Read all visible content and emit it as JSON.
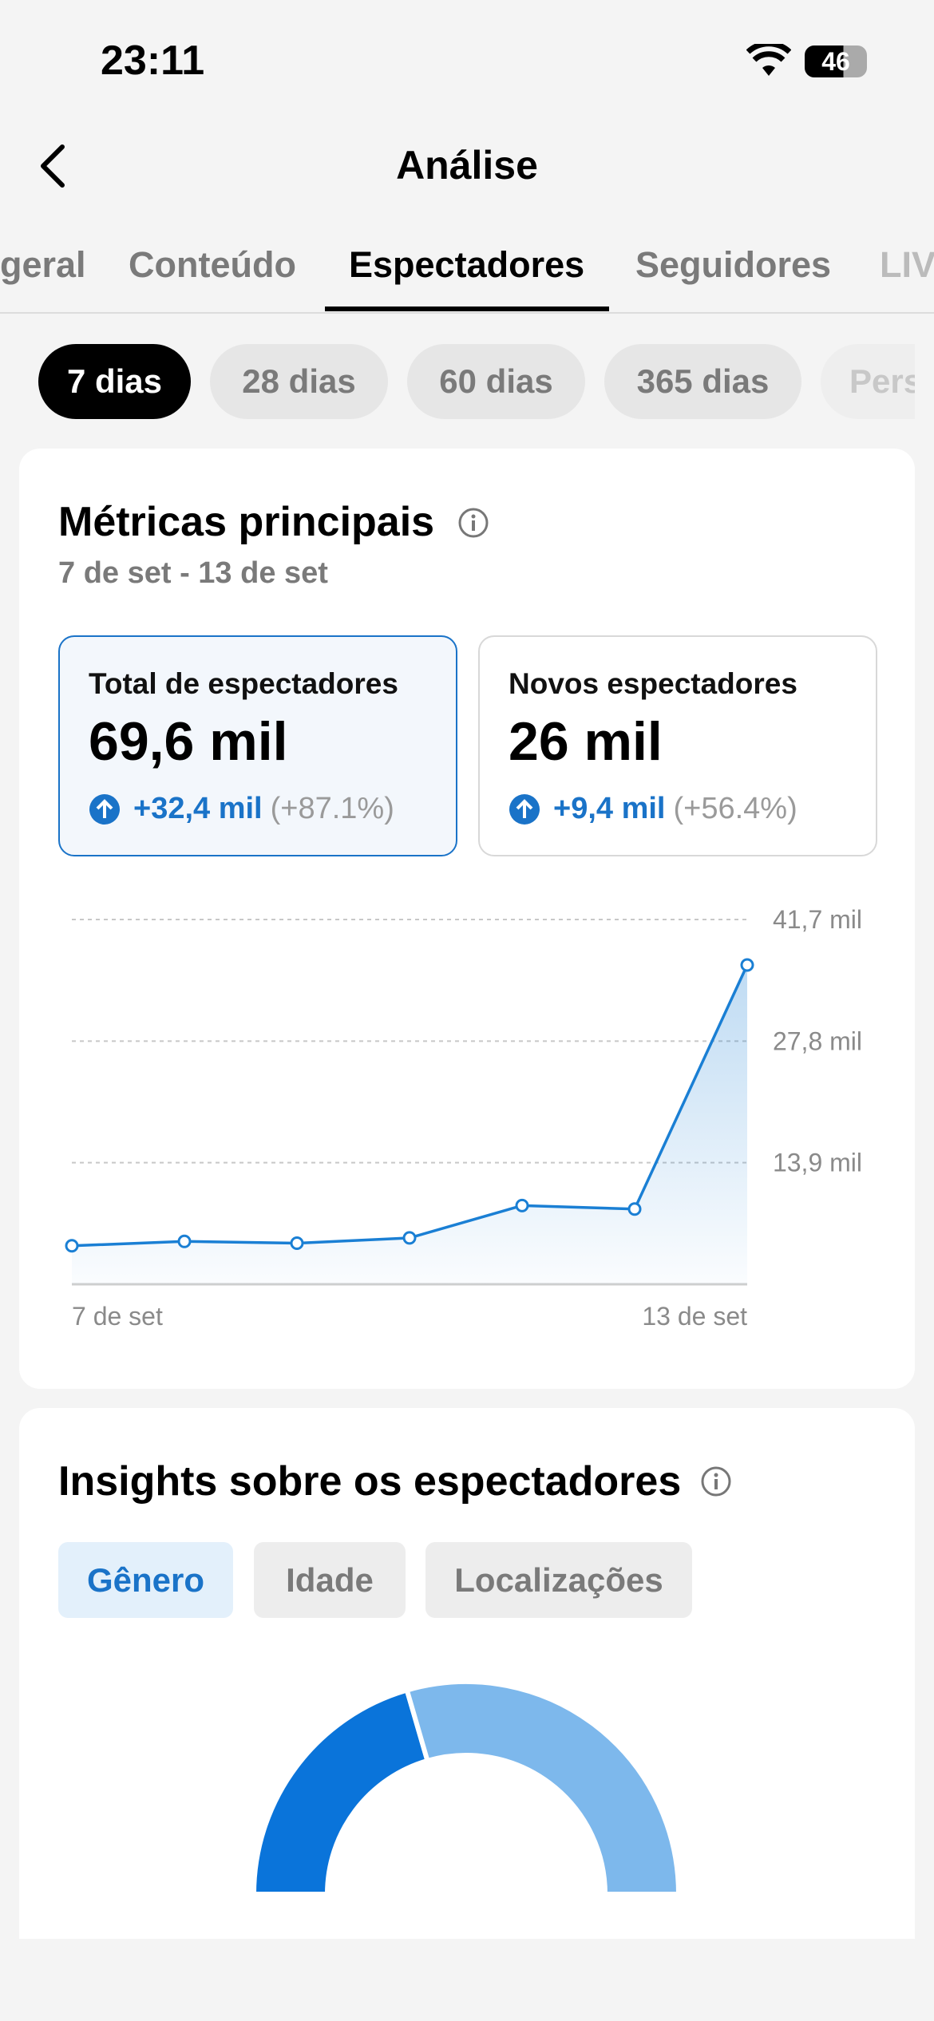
{
  "status": {
    "time": "23:11",
    "battery": "46"
  },
  "header": {
    "title": "Análise"
  },
  "tabs": [
    "geral",
    "Conteúdo",
    "Espectadores",
    "Seguidores",
    "LIV"
  ],
  "periods": [
    "7 dias",
    "28 dias",
    "60 dias",
    "365 dias",
    "Pers"
  ],
  "metrics": {
    "title": "Métricas principais",
    "range": "7 de set - 13 de set",
    "cards": [
      {
        "label": "Total de espectadores",
        "value": "69,6 mil",
        "change": "+32,4 mil",
        "pct": "(+87.1%)"
      },
      {
        "label": "Novos espectadores",
        "value": "26 mil",
        "change": "+9,4 mil",
        "pct": "(+56.4%)"
      }
    ]
  },
  "insights": {
    "title": "Insights sobre os espectadores",
    "tabs": [
      "Gênero",
      "Idade",
      "Localizações"
    ]
  },
  "chart_data": [
    {
      "type": "line",
      "categories": [
        "7 de set",
        null,
        null,
        null,
        null,
        null,
        "13 de set"
      ],
      "series": [
        {
          "color": "#1a7fd4",
          "values": [
            4400,
            4900,
            4700,
            5300,
            9000,
            8600,
            36500
          ]
        }
      ],
      "ylim": [
        0,
        41700
      ],
      "yticks": [
        {
          "value": 13900,
          "label": "13,9 mil"
        },
        {
          "value": 27800,
          "label": "27,8 mil"
        },
        {
          "value": 41700,
          "label": "41,7 mil"
        }
      ],
      "grid": true
    },
    {
      "type": "pie",
      "values": [
        41,
        59
      ],
      "colors": [
        "#0a74da",
        "#7db8ec"
      ]
    }
  ]
}
